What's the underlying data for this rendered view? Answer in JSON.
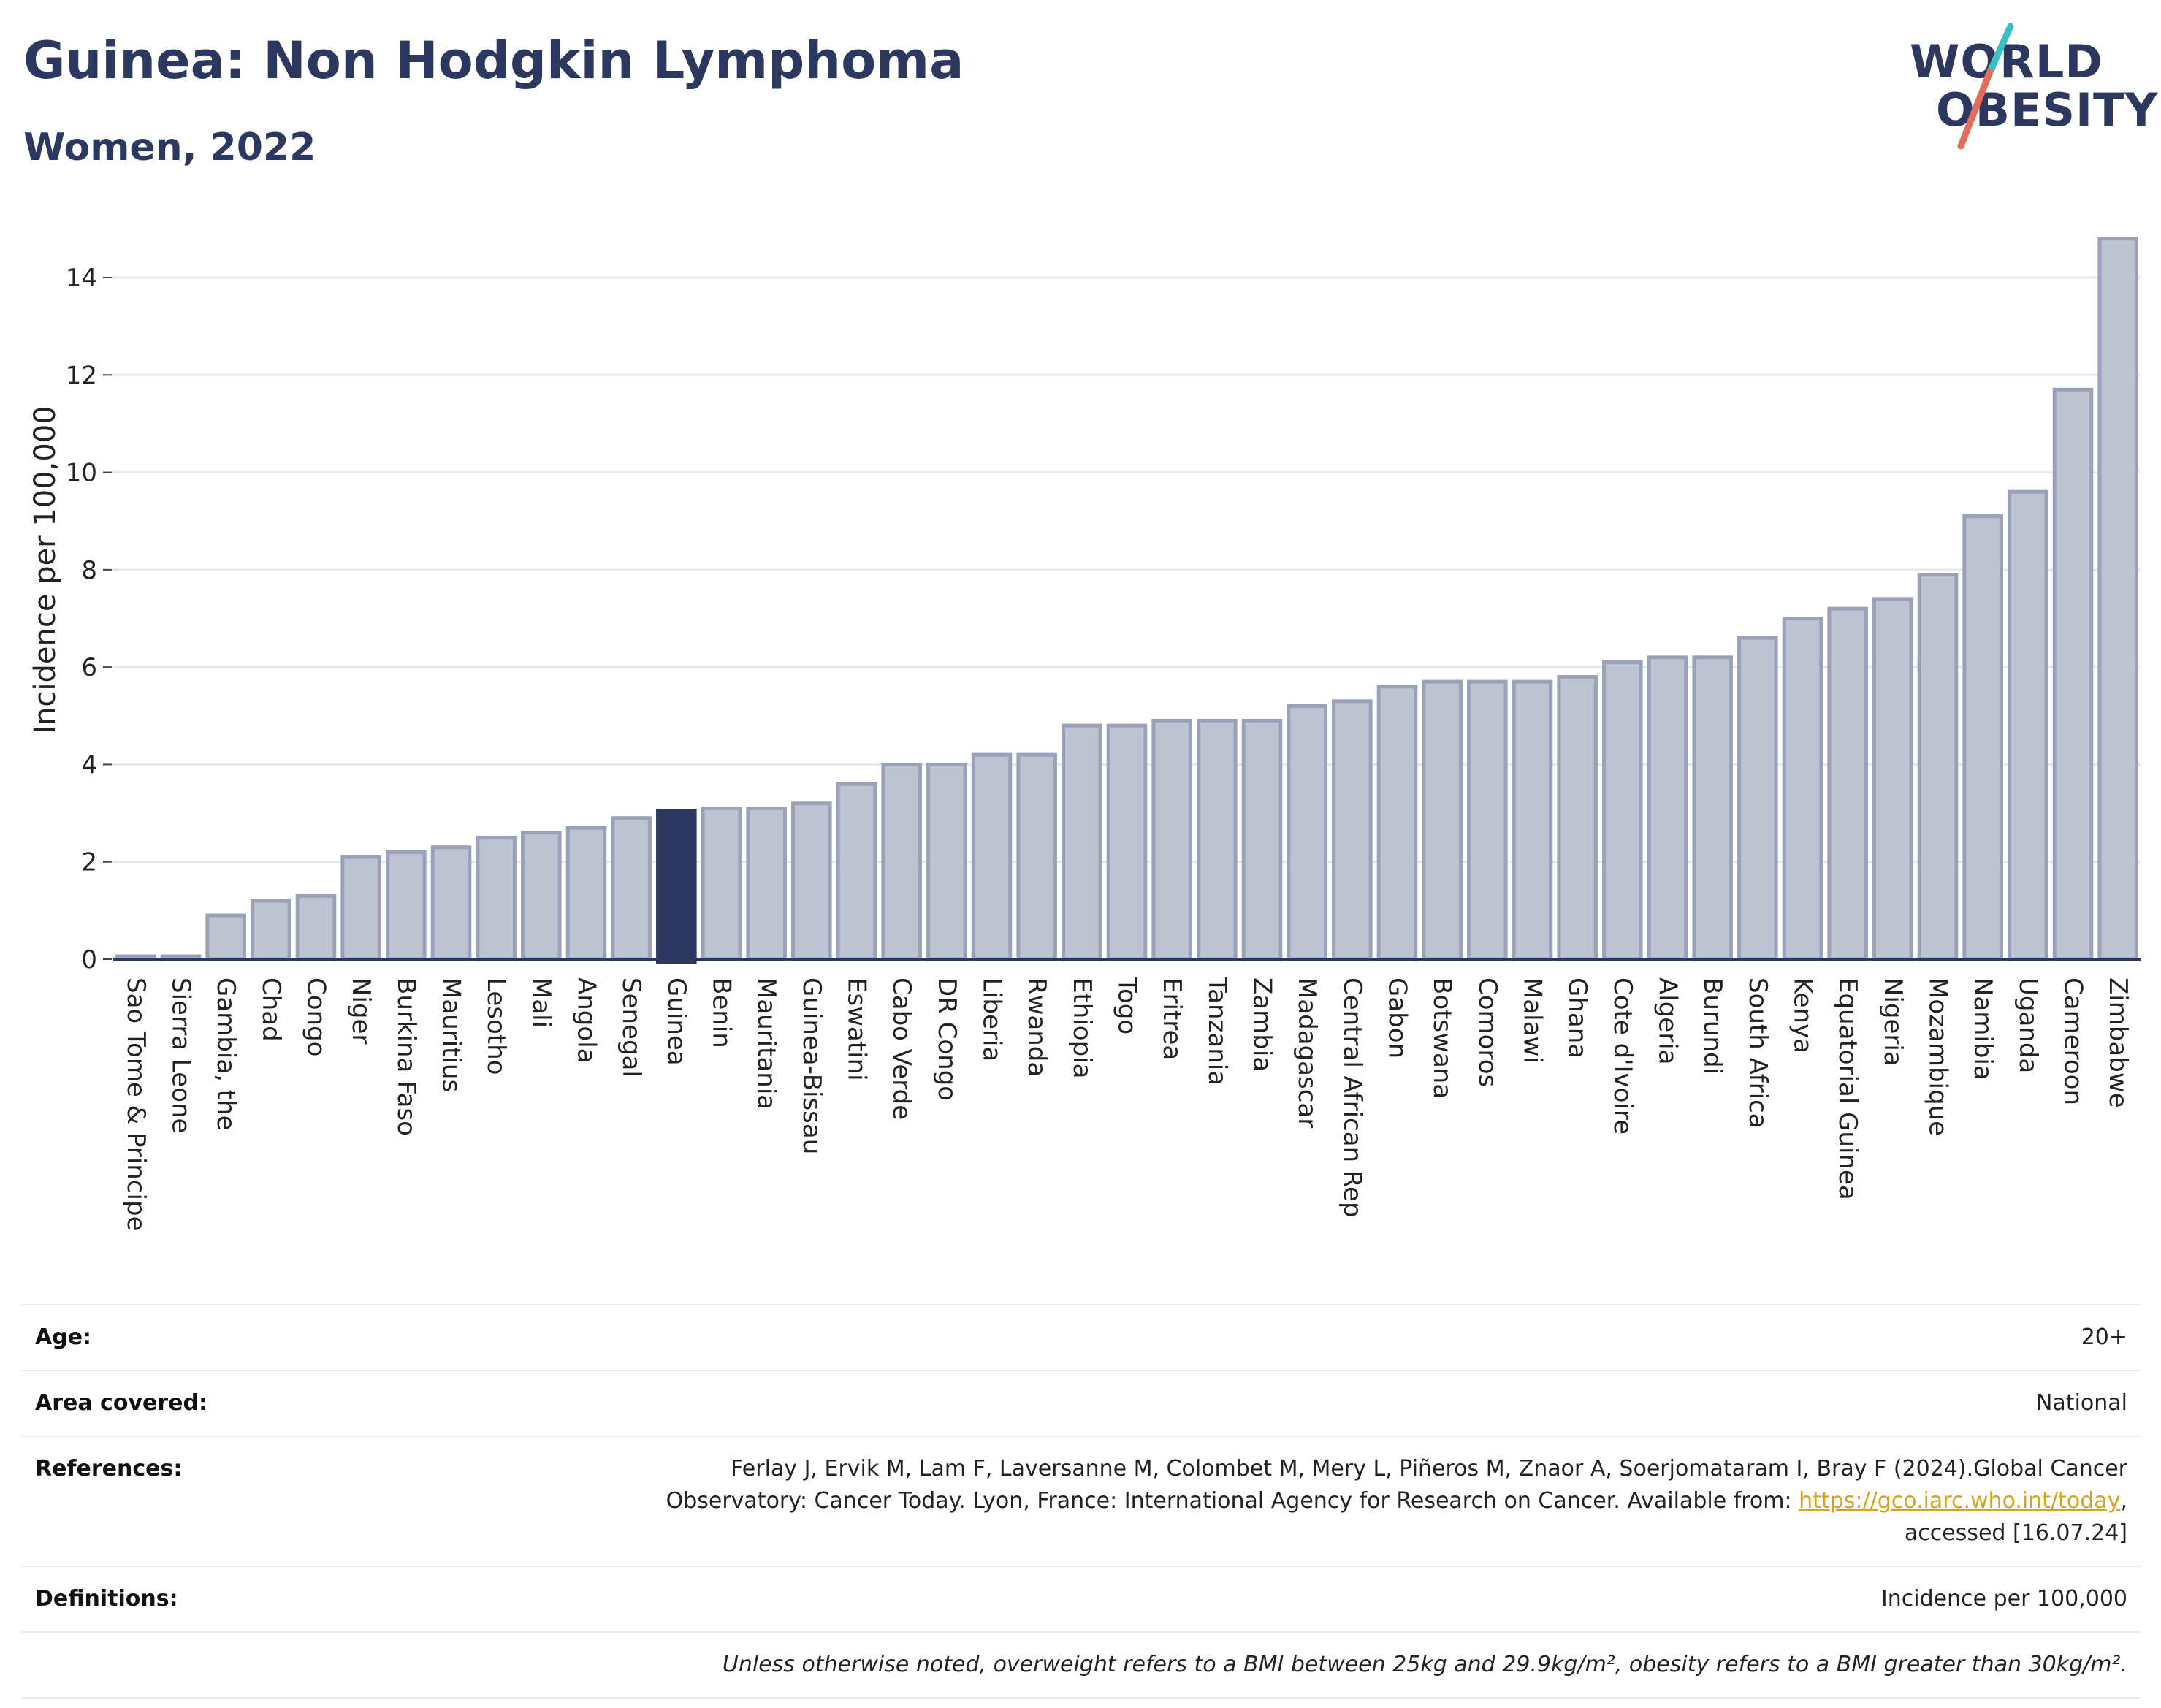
{
  "header": {
    "title": "Guinea: Non Hodgkin Lymphoma",
    "subtitle": "Women, 2022"
  },
  "logo": {
    "line1": "WORLD",
    "line2": "OBESITY",
    "colors": {
      "text": "#2d3861",
      "slash_top": "#3bbfc4",
      "slash_bottom": "#e56b5d"
    }
  },
  "colors": {
    "highlight_bar": "#2d3861",
    "bar_fill": "#bec3d2",
    "bar_stroke": "#9aa1b9",
    "grid": "#e6e8ee",
    "axis": "#2d3861"
  },
  "chart_data": {
    "type": "bar",
    "title": "Guinea: Non Hodgkin Lymphoma",
    "subtitle": "Women, 2022",
    "xlabel": "",
    "ylabel": "Incidence per 100,000",
    "ylim": [
      0,
      15
    ],
    "yticks": [
      0,
      2,
      4,
      6,
      8,
      10,
      12,
      14
    ],
    "grid": true,
    "highlight": "Guinea",
    "categories": [
      "Sao Tome & Principe",
      "Sierra Leone",
      "Gambia, the",
      "Chad",
      "Congo",
      "Niger",
      "Burkina Faso",
      "Mauritius",
      "Lesotho",
      "Mali",
      "Angola",
      "Senegal",
      "Guinea",
      "Benin",
      "Mauritania",
      "Guinea-Bissau",
      "Eswatini",
      "Cabo Verde",
      "DR Congo",
      "Liberia",
      "Rwanda",
      "Ethiopia",
      "Togo",
      "Eritrea",
      "Tanzania",
      "Zambia",
      "Madagascar",
      "Central African Rep",
      "Gabon",
      "Botswana",
      "Comoros",
      "Malawi",
      "Ghana",
      "Cote d'Ivoire",
      "Algeria",
      "Burundi",
      "South Africa",
      "Kenya",
      "Equatorial Guinea",
      "Nigeria",
      "Mozambique",
      "Namibia",
      "Uganda",
      "Cameroon",
      "Zimbabwe"
    ],
    "values": [
      0.05,
      0.05,
      0.9,
      1.2,
      1.3,
      2.1,
      2.2,
      2.3,
      2.5,
      2.6,
      2.7,
      2.9,
      3.05,
      3.1,
      3.1,
      3.2,
      3.6,
      4.0,
      4.0,
      4.2,
      4.2,
      4.8,
      4.8,
      4.9,
      4.9,
      4.9,
      5.2,
      5.3,
      5.6,
      5.7,
      5.7,
      5.7,
      5.8,
      6.1,
      6.2,
      6.2,
      6.6,
      7.0,
      7.2,
      7.4,
      7.9,
      9.1,
      9.6,
      11.7,
      14.8
    ]
  },
  "info": {
    "age_label": "Age:",
    "age_value": "20+",
    "area_label": "Area covered:",
    "area_value": "National",
    "references_label": "References:",
    "references_line1": "Ferlay J, Ervik M, Lam F, Laversanne M, Colombet M, Mery L, Piñeros M, Znaor A, Soerjomataram I, Bray F (2024).Global Cancer",
    "references_line2": "Observatory: Cancer Today. Lyon, France: International Agency for Research on Cancer. Available from: ",
    "references_link": "https://gco.iarc.who.int/today",
    "references_line2_end": ",",
    "references_line3": "accessed [16.07.24]",
    "definitions_label": "Definitions:",
    "definitions_value": "Incidence per 100,000",
    "note": "Unless otherwise noted, overweight refers to a BMI between 25kg and 29.9kg/m², obesity refers to a BMI greater than 30kg/m²."
  }
}
